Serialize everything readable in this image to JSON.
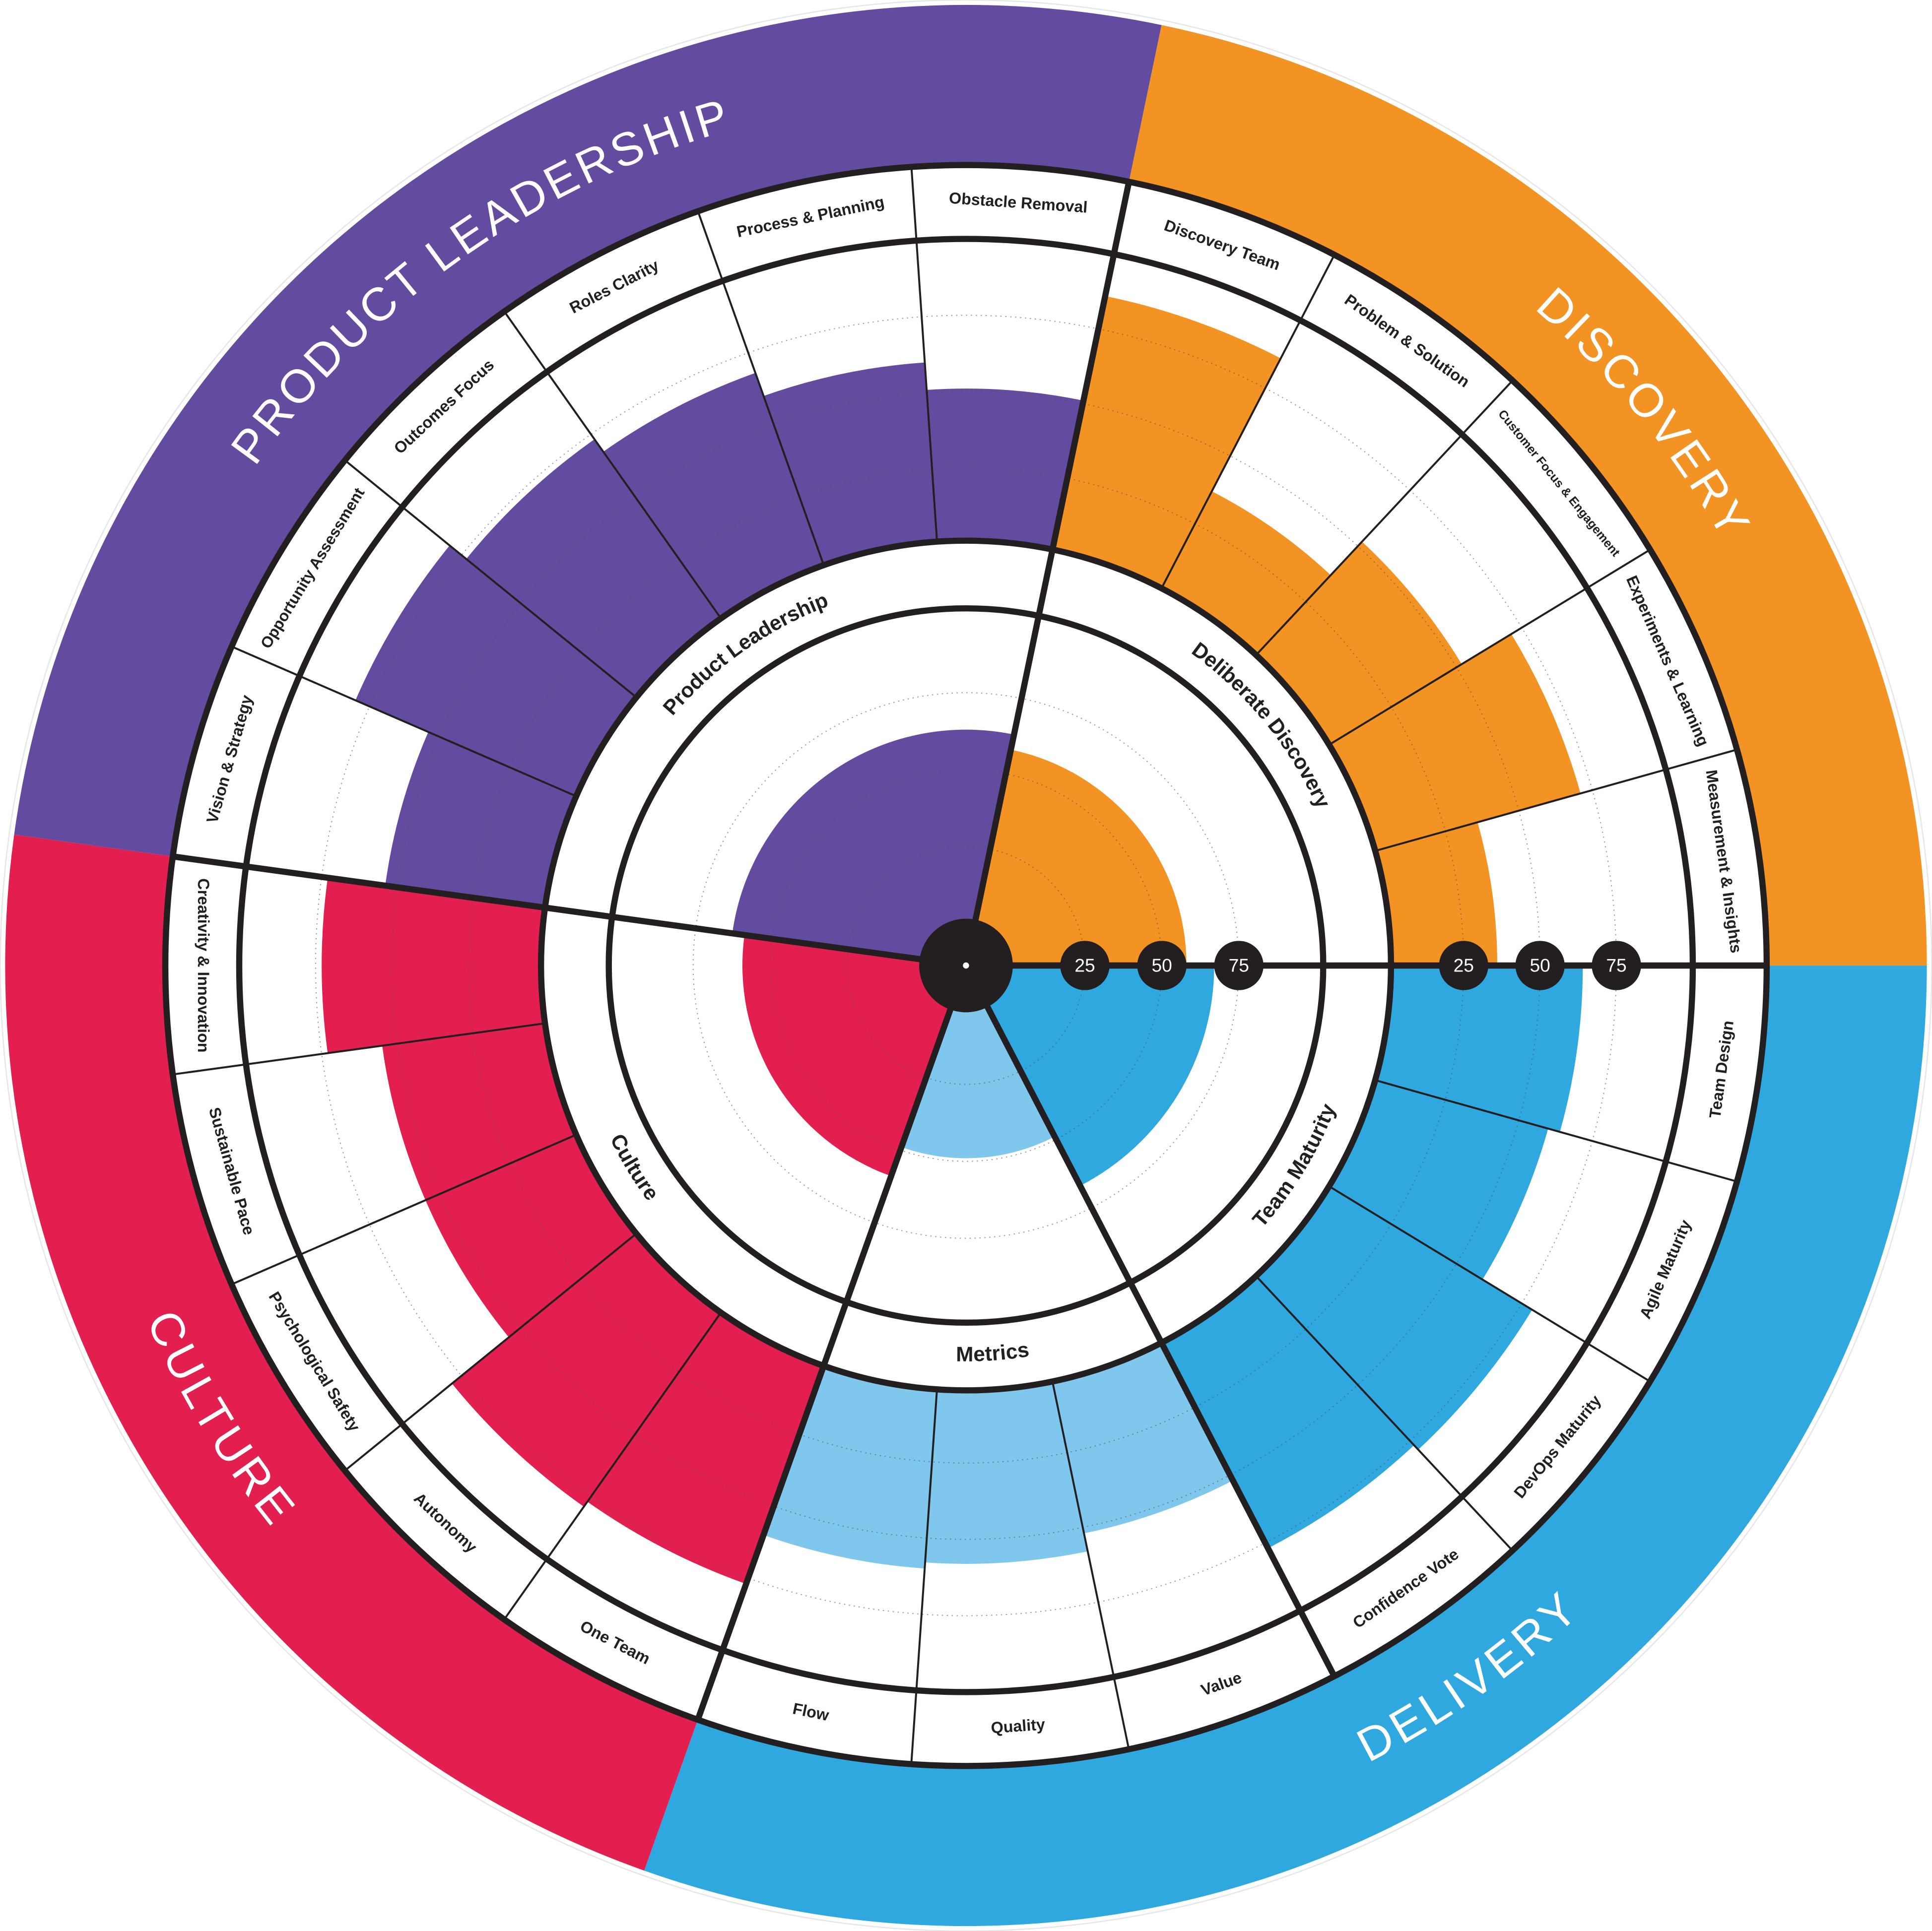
{
  "chart_data": {
    "type": "polar_bar",
    "inner": {
      "ylim": [
        0,
        100
      ],
      "yticks": [
        25,
        50,
        75
      ]
    },
    "outer": {
      "ylim": [
        0,
        100
      ],
      "yticks": [
        25,
        50,
        75
      ]
    },
    "bands": [
      {
        "name": "PRODUCT LEADERSHIP",
        "color": "#634c9f",
        "groups": [
          {
            "label": "Product Leadership",
            "color": "#634c9f",
            "value": 63,
            "categories": [
              "Vision & Strategy",
              "Opportunity Assessment",
              "Outcomes Focus",
              "Roles Clarity",
              "Process & Planning",
              "Obstacle Removal"
            ],
            "values": [
              54,
              80,
              73,
              68,
              60,
              51
            ]
          }
        ]
      },
      {
        "name": "DISCOVERY",
        "color": "#f39323",
        "groups": [
          {
            "label": "Deliberate Discovery",
            "color": "#f39323",
            "value": 58,
            "categories": [
              "Discovery Team",
              "Problem & Solution",
              "Customer Focus & Engagement",
              "Experiments & Learning",
              "Measurement & Insights"
            ],
            "values": [
              86,
              37,
              52,
              71,
              36
            ]
          }
        ]
      },
      {
        "name": "DELIVERY",
        "color": "#2fa8e0",
        "groups": [
          {
            "label": "Team Maturity",
            "color": "#2fa8e0",
            "value": 67,
            "categories": [
              "Team Design",
              "Agile Maturity",
              "DevOps Maturity",
              "Confidence Vote"
            ],
            "values": [
              64,
              60,
              79,
              77
            ]
          },
          {
            "label": "Metrics",
            "color": "#7fc7ec",
            "value": 49,
            "categories": [
              "Value",
              "Quality",
              "Flow"
            ],
            "values": [
              52,
              58,
              60
            ]
          }
        ]
      },
      {
        "name": "CULTURE",
        "color": "#e31f4f",
        "groups": [
          {
            "label": "Culture",
            "color": "#e31f4f",
            "value": 59,
            "categories": [
              "One Team",
              "Autonomy",
              "Psychological Safety",
              "Sustainable Pace",
              "Creativity & Innovation"
            ],
            "values": [
              77,
              79,
              55,
              55,
              73
            ]
          }
        ]
      }
    ]
  }
}
